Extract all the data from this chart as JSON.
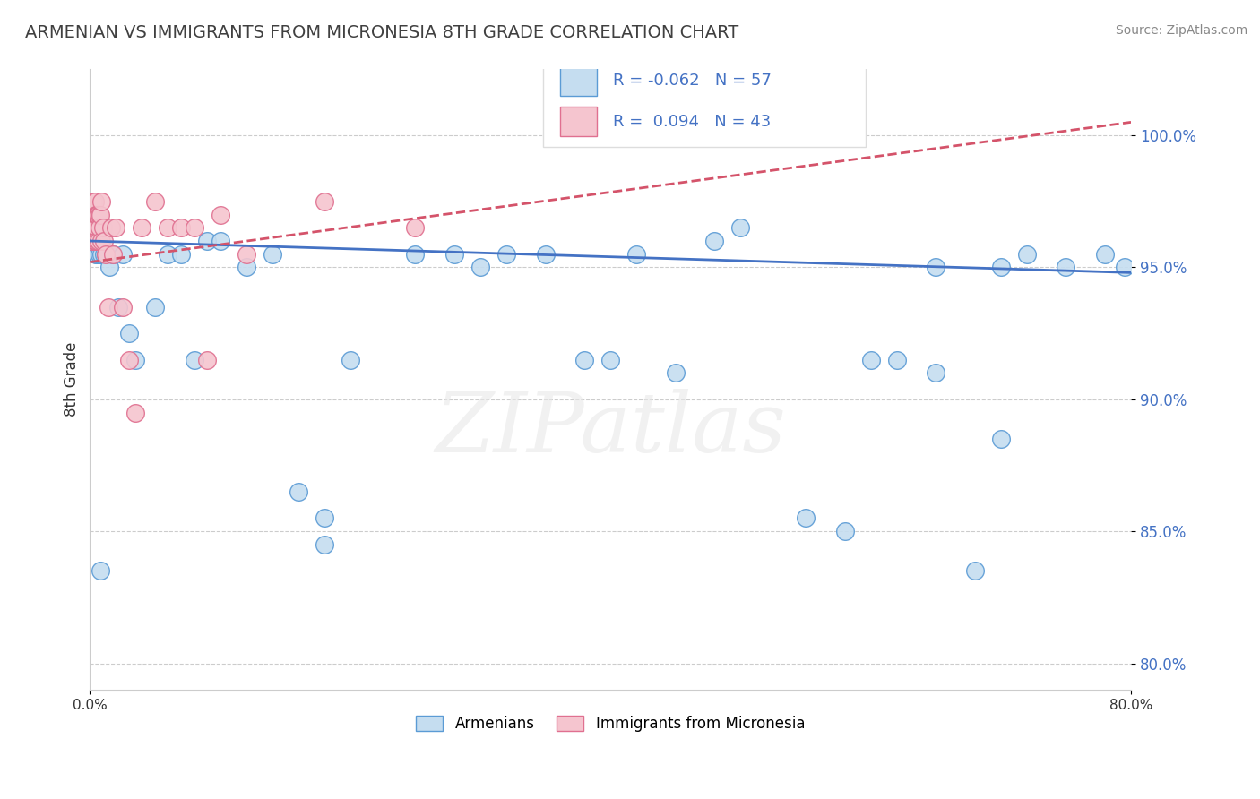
{
  "title": "ARMENIAN VS IMMIGRANTS FROM MICRONESIA 8TH GRADE CORRELATION CHART",
  "source": "Source: ZipAtlas.com",
  "ylabel_label": "8th Grade",
  "xlim": [
    0.0,
    80.0
  ],
  "ylim": [
    79.0,
    102.5
  ],
  "ytick_vals": [
    80.0,
    85.0,
    90.0,
    95.0,
    100.0
  ],
  "xtick_vals": [
    0.0,
    80.0
  ],
  "blue_R": -0.062,
  "blue_N": 57,
  "pink_R": 0.094,
  "pink_N": 43,
  "blue_color": "#c5ddf0",
  "blue_edge_color": "#5b9bd5",
  "blue_line_color": "#4472c4",
  "pink_color": "#f5c5cf",
  "pink_edge_color": "#e07090",
  "pink_line_color": "#d4536a",
  "blue_scatter_x": [
    0.15,
    0.25,
    0.35,
    0.4,
    0.45,
    0.5,
    0.55,
    0.6,
    0.7,
    0.75,
    0.8,
    0.9,
    1.0,
    1.1,
    1.2,
    1.5,
    1.8,
    2.2,
    2.5,
    3.0,
    3.5,
    5.0,
    6.0,
    7.0,
    8.0,
    9.0,
    10.0,
    12.0,
    14.0,
    16.0,
    18.0,
    20.0,
    25.0,
    28.0,
    30.0,
    32.0,
    35.0,
    38.0,
    40.0,
    42.0,
    45.0,
    48.0,
    50.0,
    55.0,
    58.0,
    60.0,
    62.0,
    65.0,
    68.0,
    70.0,
    72.0,
    75.0,
    78.0,
    79.5,
    65.0,
    70.0,
    18.0
  ],
  "blue_scatter_y": [
    96.5,
    96.0,
    96.5,
    96.0,
    95.5,
    96.5,
    95.5,
    96.0,
    95.5,
    96.0,
    83.5,
    95.5,
    96.5,
    95.5,
    95.5,
    95.0,
    95.5,
    93.5,
    95.5,
    92.5,
    91.5,
    93.5,
    95.5,
    95.5,
    91.5,
    96.0,
    96.0,
    95.0,
    95.5,
    86.5,
    85.5,
    91.5,
    95.5,
    95.5,
    95.0,
    95.5,
    95.5,
    91.5,
    91.5,
    95.5,
    91.0,
    96.0,
    96.5,
    85.5,
    85.0,
    91.5,
    91.5,
    95.0,
    83.5,
    95.0,
    95.5,
    95.0,
    95.5,
    95.0,
    91.0,
    88.5,
    84.5
  ],
  "pink_scatter_x": [
    0.1,
    0.15,
    0.2,
    0.22,
    0.25,
    0.28,
    0.3,
    0.32,
    0.35,
    0.38,
    0.4,
    0.42,
    0.45,
    0.48,
    0.5,
    0.55,
    0.6,
    0.65,
    0.7,
    0.75,
    0.8,
    0.85,
    0.9,
    1.0,
    1.1,
    1.2,
    1.4,
    1.6,
    1.8,
    2.0,
    2.5,
    3.0,
    4.0,
    5.0,
    6.0,
    7.0,
    8.0,
    10.0,
    12.0,
    18.0,
    25.0,
    3.5,
    9.0
  ],
  "pink_scatter_y": [
    96.0,
    97.0,
    97.0,
    97.5,
    96.5,
    96.5,
    97.0,
    96.5,
    96.5,
    96.0,
    97.5,
    96.0,
    97.0,
    96.5,
    97.0,
    96.0,
    97.0,
    96.0,
    97.0,
    96.5,
    97.0,
    96.0,
    97.5,
    96.5,
    96.0,
    95.5,
    93.5,
    96.5,
    95.5,
    96.5,
    93.5,
    91.5,
    96.5,
    97.5,
    96.5,
    96.5,
    96.5,
    97.0,
    95.5,
    97.5,
    96.5,
    89.5,
    91.5
  ],
  "blue_trend_x": [
    0.0,
    80.0
  ],
  "blue_trend_y": [
    96.0,
    94.8
  ],
  "pink_trend_x": [
    0.0,
    80.0
  ],
  "pink_trend_y": [
    95.2,
    100.5
  ],
  "watermark_text": "ZIPatlas",
  "legend_blue_label": "Armenians",
  "legend_pink_label": "Immigrants from Micronesia"
}
